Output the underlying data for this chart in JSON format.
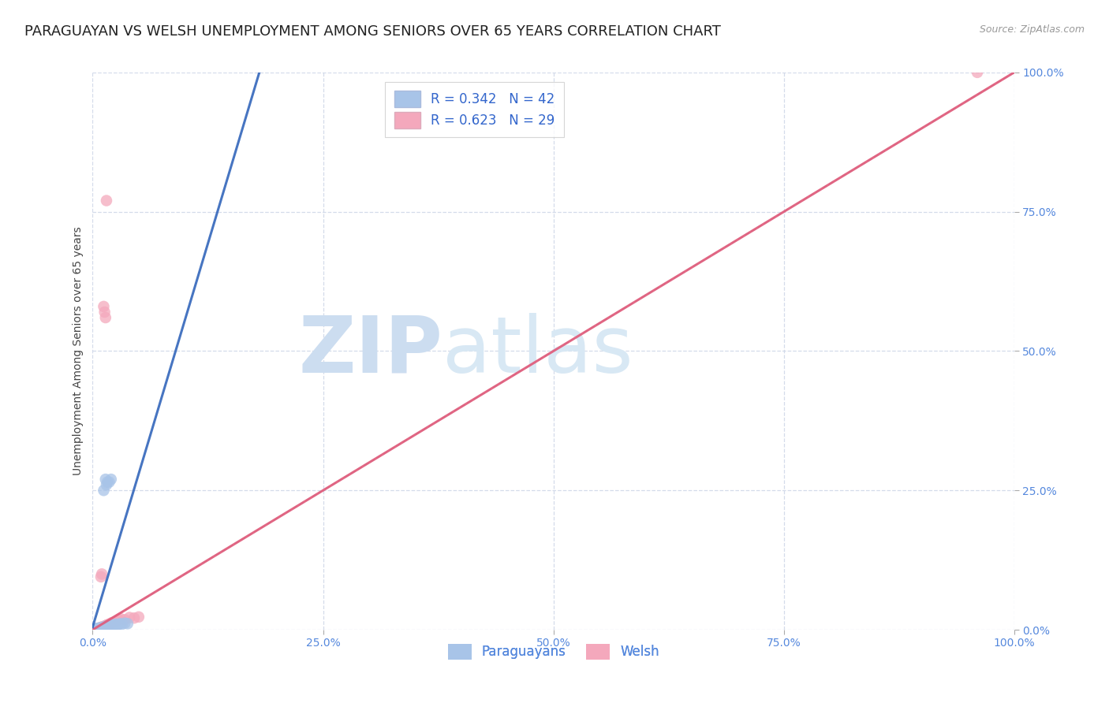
{
  "title": "PARAGUAYAN VS WELSH UNEMPLOYMENT AMONG SENIORS OVER 65 YEARS CORRELATION CHART",
  "source": "Source: ZipAtlas.com",
  "xlabel_paraguayan": "Paraguayans",
  "xlabel_welsh": "Welsh",
  "ylabel": "Unemployment Among Seniors over 65 years",
  "xlim": [
    0,
    1.0
  ],
  "ylim": [
    0,
    1.0
  ],
  "xtick_labels": [
    "0.0%",
    "25.0%",
    "50.0%",
    "75.0%",
    "100.0%"
  ],
  "ytick_labels": [
    "0.0%",
    "25.0%",
    "50.0%",
    "75.0%",
    "100.0%"
  ],
  "xtick_positions": [
    0,
    0.25,
    0.5,
    0.75,
    1.0
  ],
  "ytick_positions": [
    0,
    0.25,
    0.5,
    0.75,
    1.0
  ],
  "R_paraguayan": 0.342,
  "N_paraguayan": 42,
  "R_welsh": 0.623,
  "N_welsh": 29,
  "color_paraguayan": "#a8c4e8",
  "color_welsh": "#f4a8bc",
  "line_color_paraguayan": "#3366bb",
  "line_color_welsh": "#e05878",
  "diagonal_color": "#c0c8d8",
  "watermark_zip_color": "#ccddf0",
  "watermark_atlas_color": "#d8e8f4",
  "paraguayan_points": [
    [
      0.0,
      0.0
    ],
    [
      0.002,
      0.001
    ],
    [
      0.003,
      0.002
    ],
    [
      0.004,
      0.001
    ],
    [
      0.005,
      0.002
    ],
    [
      0.006,
      0.003
    ],
    [
      0.007,
      0.002
    ],
    [
      0.008,
      0.003
    ],
    [
      0.009,
      0.004
    ],
    [
      0.01,
      0.003
    ],
    [
      0.011,
      0.004
    ],
    [
      0.012,
      0.005
    ],
    [
      0.013,
      0.004
    ],
    [
      0.014,
      0.006
    ],
    [
      0.015,
      0.005
    ],
    [
      0.016,
      0.006
    ],
    [
      0.017,
      0.007
    ],
    [
      0.018,
      0.006
    ],
    [
      0.019,
      0.007
    ],
    [
      0.02,
      0.008
    ],
    [
      0.021,
      0.007
    ],
    [
      0.022,
      0.008
    ],
    [
      0.023,
      0.009
    ],
    [
      0.025,
      0.01
    ],
    [
      0.027,
      0.009
    ],
    [
      0.028,
      0.01
    ],
    [
      0.03,
      0.011
    ],
    [
      0.032,
      0.01
    ],
    [
      0.035,
      0.012
    ],
    [
      0.038,
      0.011
    ],
    [
      0.012,
      0.25
    ],
    [
      0.014,
      0.27
    ],
    [
      0.015,
      0.26
    ],
    [
      0.016,
      0.265
    ],
    [
      0.02,
      0.27
    ],
    [
      0.018,
      0.265
    ],
    [
      0.003,
      0.0
    ],
    [
      0.005,
      0.001
    ],
    [
      0.008,
      0.002
    ],
    [
      0.001,
      0.0
    ],
    [
      0.006,
      0.001
    ],
    [
      0.01,
      0.002
    ]
  ],
  "welsh_points": [
    [
      0.003,
      0.0
    ],
    [
      0.004,
      0.001
    ],
    [
      0.005,
      0.001
    ],
    [
      0.006,
      0.002
    ],
    [
      0.007,
      0.003
    ],
    [
      0.008,
      0.003
    ],
    [
      0.009,
      0.004
    ],
    [
      0.01,
      0.005
    ],
    [
      0.012,
      0.006
    ],
    [
      0.014,
      0.007
    ],
    [
      0.015,
      0.008
    ],
    [
      0.016,
      0.009
    ],
    [
      0.018,
      0.01
    ],
    [
      0.02,
      0.012
    ],
    [
      0.022,
      0.013
    ],
    [
      0.025,
      0.015
    ],
    [
      0.028,
      0.018
    ],
    [
      0.03,
      0.02
    ],
    [
      0.035,
      0.018
    ],
    [
      0.04,
      0.022
    ],
    [
      0.045,
      0.021
    ],
    [
      0.05,
      0.023
    ],
    [
      0.009,
      0.095
    ],
    [
      0.01,
      0.1
    ],
    [
      0.012,
      0.58
    ],
    [
      0.015,
      0.77
    ],
    [
      0.013,
      0.57
    ],
    [
      0.014,
      0.56
    ],
    [
      0.96,
      1.0
    ]
  ],
  "background_color": "#ffffff",
  "title_fontsize": 13,
  "axis_label_fontsize": 10,
  "tick_fontsize": 10,
  "legend_fontsize": 12
}
